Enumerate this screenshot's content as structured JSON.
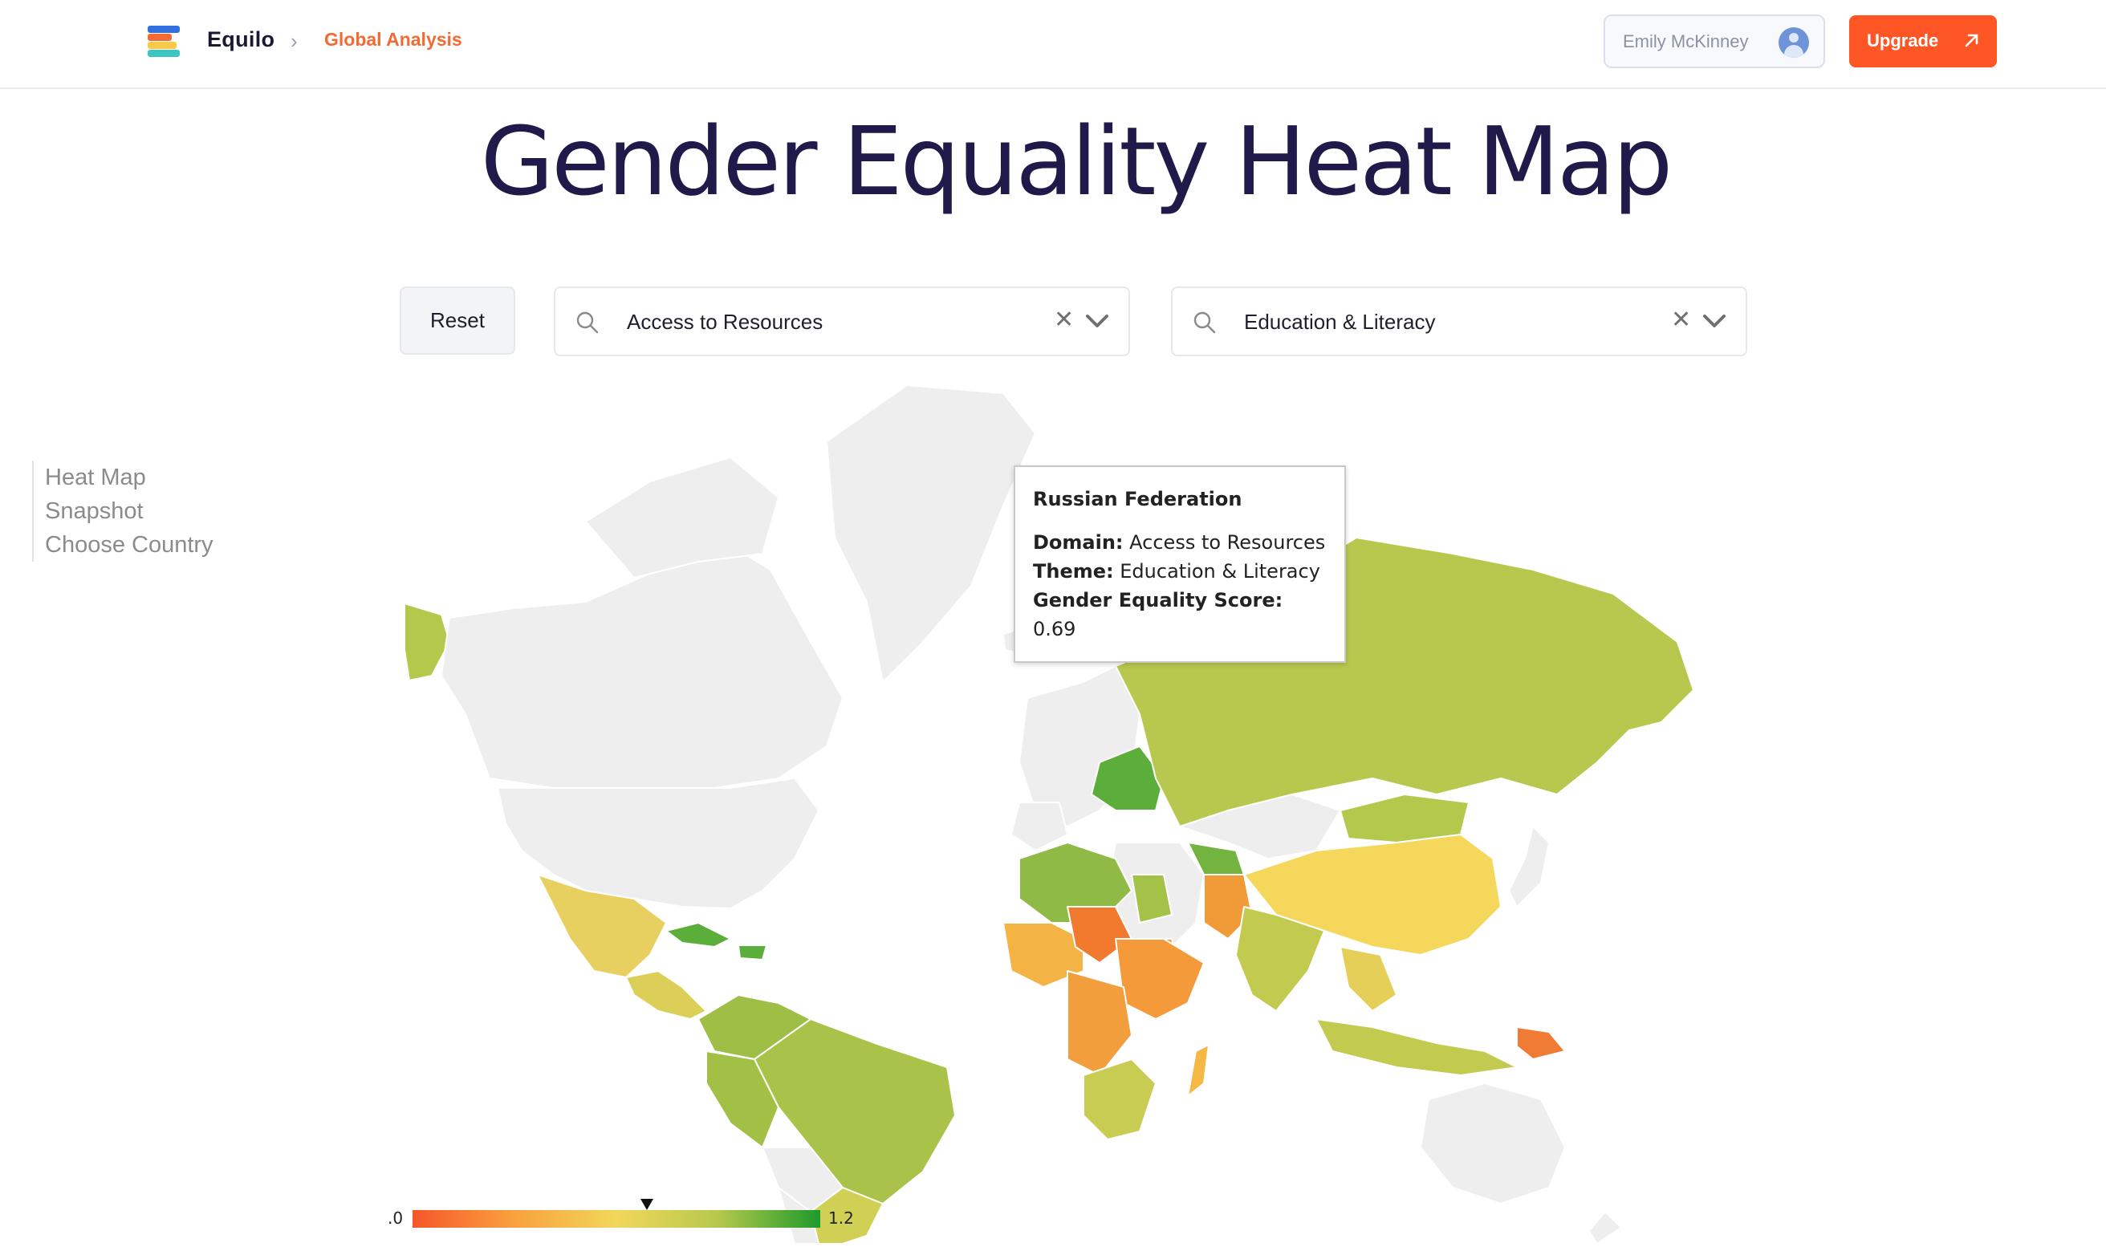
{
  "header": {
    "brand": "Equilo",
    "breadcrumb_sep": "›",
    "breadcrumb": "Global Analysis",
    "user_name": "Emily McKinney",
    "upgrade_label": "Upgrade",
    "upgrade_icon": "arrow-up-right-icon"
  },
  "page": {
    "title": "Gender Equality Heat Map"
  },
  "side_nav": {
    "items": [
      {
        "label": "Heat Map"
      },
      {
        "label": "Snapshot"
      },
      {
        "label": "Choose Country"
      }
    ]
  },
  "filters": {
    "reset_label": "Reset",
    "domain": {
      "value": "Access to Resources",
      "clear": "✕"
    },
    "theme": {
      "value": "Education & Literacy",
      "clear": "✕"
    }
  },
  "tooltip": {
    "country": "Russian Federation",
    "domain_label": "Domain:",
    "domain_value": "Access to Resources",
    "theme_label": "Theme:",
    "theme_value": "Education & Literacy",
    "score_label": "Gender Equality Score:",
    "score_value": "0.69"
  },
  "legend": {
    "min_label": ".0",
    "max_label": "1.2",
    "min": 0.0,
    "max": 1.2,
    "marker_value": 0.69,
    "colors": [
      "#f5562a",
      "#f9a13d",
      "#f2d75a",
      "#b6c84c",
      "#1d9a2b"
    ]
  },
  "colors": {
    "no_data": "#eeeeee",
    "accent": "#fe5625",
    "title": "#201a4a"
  }
}
